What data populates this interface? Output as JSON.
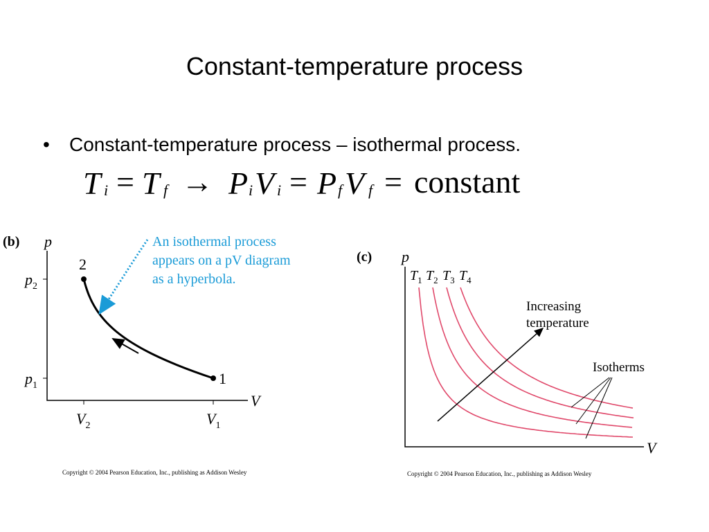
{
  "title": "Constant-temperature process",
  "bullet": "Constant-temperature process – isothermal process.",
  "equation": [
    "T",
    "i",
    "=",
    "T",
    "f",
    "→",
    "P",
    "i",
    "V",
    "i",
    "=",
    "P",
    "f",
    "V",
    "f",
    "=",
    "constant"
  ],
  "figure_b": {
    "label": "(b)",
    "y_axis": "p",
    "x_axis": "V",
    "y_ticks": [
      {
        "base": "p",
        "sub": "2"
      },
      {
        "base": "p",
        "sub": "1"
      }
    ],
    "x_ticks": [
      {
        "base": "V",
        "sub": "2"
      },
      {
        "base": "V",
        "sub": "1"
      }
    ],
    "points": [
      "2",
      "1"
    ],
    "annotation": [
      "An isothermal process",
      "appears on a pV diagram",
      "as a hyperbola."
    ],
    "copyright": "Copyright © 2004 Pearson Education, Inc., publishing as Addison Wesley"
  },
  "figure_c": {
    "label": "(c)",
    "y_axis": "p",
    "x_axis": "V",
    "curves": [
      {
        "base": "T",
        "sub": "1"
      },
      {
        "base": "T",
        "sub": "2"
      },
      {
        "base": "T",
        "sub": "3"
      },
      {
        "base": "T",
        "sub": "4"
      }
    ],
    "arrow_label": [
      "Increasing",
      "temperature"
    ],
    "isotherms_label": "Isotherms",
    "copyright": "Copyright © 2004 Pearson Education, Inc., publishing as Addison Wesley"
  }
}
